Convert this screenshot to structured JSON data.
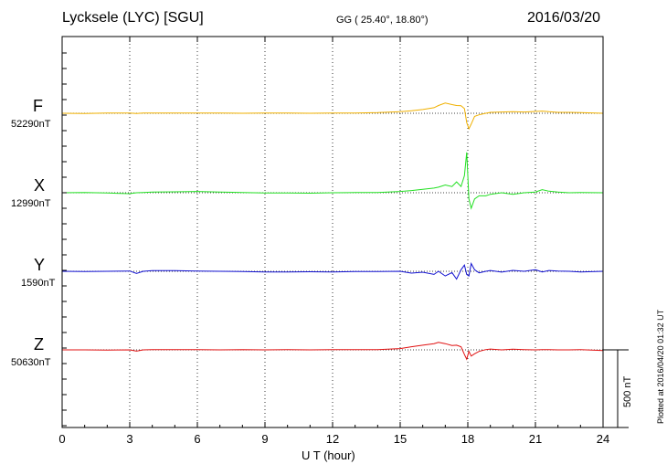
{
  "header": {
    "station": "Lycksele (LYC)  [SGU]",
    "coords": "GG ( 25.40°,  18.80°)",
    "date": "2016/03/20"
  },
  "plotted_note": "Plotted at 2016/04/20 01:32 UT",
  "scale_label": "500 nT",
  "colors": {
    "F": "#f0b000",
    "X": "#22e022",
    "Y": "#1010d0",
    "Z": "#e01010",
    "axis": "#000000"
  },
  "chart_data": {
    "type": "line",
    "title": "",
    "xlabel": "U T (hour)",
    "xlim": [
      0,
      24
    ],
    "xticks": [
      "0",
      "3",
      "6",
      "9",
      "12",
      "15",
      "18",
      "21",
      "24"
    ],
    "grid": true,
    "scale_bar_nT": 500,
    "x": [
      0,
      1,
      2,
      3,
      3.3,
      3.6,
      4,
      5,
      6,
      7,
      8,
      9,
      10,
      11,
      12,
      13,
      14,
      15,
      15.5,
      16,
      16.5,
      16.7,
      17,
      17.3,
      17.5,
      17.7,
      17.85,
      17.95,
      18.05,
      18.15,
      18.3,
      18.5,
      18.8,
      19,
      19.5,
      20,
      20.5,
      21,
      21.3,
      21.6,
      22,
      22.5,
      23,
      24
    ],
    "series": [
      {
        "name": "F",
        "baseline": "52290nT",
        "values": [
          0,
          -2,
          1,
          2,
          -2,
          1,
          2,
          1,
          2,
          1,
          0,
          1,
          1,
          0,
          1,
          2,
          4,
          10,
          16,
          24,
          36,
          50,
          66,
          56,
          50,
          48,
          30,
          -60,
          -100,
          -70,
          -20,
          -10,
          0,
          6,
          8,
          10,
          8,
          12,
          14,
          10,
          6,
          6,
          4,
          0
        ]
      },
      {
        "name": "X",
        "baseline": "12990nT",
        "values": [
          0,
          1,
          -2,
          -6,
          0,
          2,
          4,
          6,
          8,
          4,
          2,
          -2,
          -1,
          -3,
          0,
          1,
          2,
          8,
          14,
          22,
          30,
          36,
          50,
          40,
          70,
          40,
          110,
          260,
          -40,
          -100,
          -40,
          -20,
          -20,
          -10,
          0,
          -10,
          0,
          5,
          20,
          10,
          5,
          0,
          2,
          0
        ]
      },
      {
        "name": "Y",
        "baseline": "1590nT",
        "values": [
          0,
          -2,
          0,
          2,
          -14,
          0,
          4,
          4,
          2,
          0,
          -2,
          -4,
          -4,
          -3,
          -4,
          -2,
          -2,
          0,
          -12,
          -6,
          -20,
          0,
          -30,
          -8,
          -50,
          10,
          40,
          -20,
          -30,
          50,
          10,
          -10,
          0,
          5,
          -5,
          6,
          0,
          10,
          -4,
          5,
          2,
          0,
          -4,
          0
        ]
      },
      {
        "name": "Z",
        "baseline": "50630nT",
        "values": [
          0,
          0,
          -1,
          0,
          -8,
          0,
          2,
          1,
          2,
          0,
          2,
          0,
          1,
          0,
          1,
          1,
          2,
          8,
          20,
          30,
          40,
          48,
          40,
          28,
          30,
          20,
          -30,
          -60,
          -10,
          -40,
          -25,
          -10,
          2,
          5,
          0,
          4,
          2,
          0,
          2,
          1,
          0,
          0,
          2,
          -4
        ]
      }
    ]
  }
}
